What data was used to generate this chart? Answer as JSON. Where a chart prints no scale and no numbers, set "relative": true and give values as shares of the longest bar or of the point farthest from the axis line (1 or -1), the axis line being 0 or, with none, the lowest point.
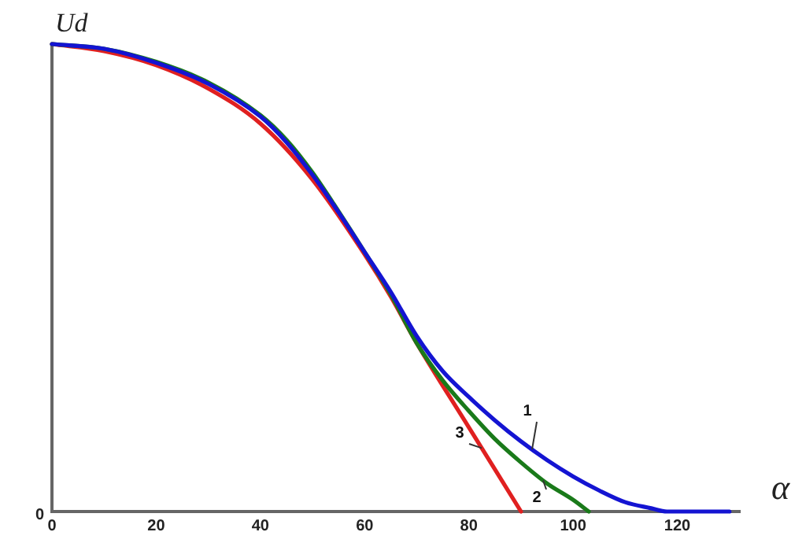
{
  "chart_data": {
    "type": "line",
    "xlabel": "α",
    "ylabel": "Ud",
    "relative": true,
    "grid": false,
    "legend": false,
    "marker": "none",
    "line_style": "solid",
    "xlim": [
      0,
      132
    ],
    "xticks": [
      0,
      20,
      40,
      60,
      80,
      100,
      120
    ],
    "annotations": [
      "0"
    ],
    "series": [
      {
        "name": "1",
        "color": "#1414d2",
        "x": [
          0,
          10,
          20,
          30,
          40,
          45,
          50,
          55,
          60,
          65,
          70,
          75,
          80,
          85,
          90,
          95,
          100,
          105,
          110,
          115,
          118,
          130
        ],
        "values": [
          1.0,
          0.99,
          0.96,
          0.915,
          0.845,
          0.79,
          0.72,
          0.64,
          0.555,
          0.47,
          0.375,
          0.3,
          0.245,
          0.195,
          0.15,
          0.11,
          0.075,
          0.045,
          0.02,
          0.007,
          0,
          0
        ]
      },
      {
        "name": "2",
        "color": "#1a7a1a",
        "x": [
          0,
          10,
          20,
          30,
          40,
          45,
          50,
          55,
          60,
          65,
          70,
          75,
          80,
          85,
          90,
          95,
          100,
          103
        ],
        "values": [
          1.0,
          0.99,
          0.962,
          0.918,
          0.848,
          0.795,
          0.725,
          0.642,
          0.555,
          0.465,
          0.36,
          0.28,
          0.215,
          0.155,
          0.105,
          0.06,
          0.025,
          0
        ]
      },
      {
        "name": "3",
        "color": "#e02020",
        "x": [
          0,
          10,
          20,
          30,
          40,
          50,
          60,
          65,
          70,
          80,
          90
        ],
        "values": [
          1.0,
          0.985,
          0.955,
          0.905,
          0.83,
          0.71,
          0.55,
          0.46,
          0.36,
          0.18,
          0
        ]
      }
    ]
  }
}
